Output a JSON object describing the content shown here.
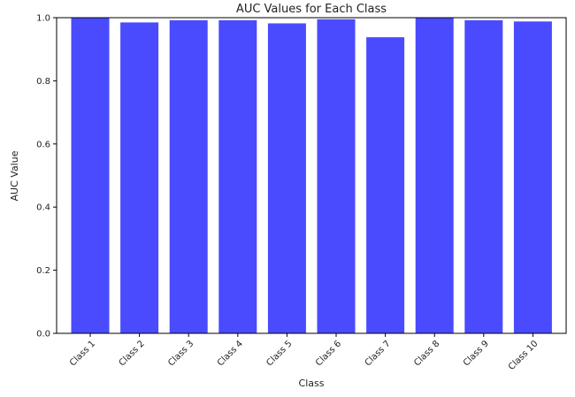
{
  "chart_data": {
    "type": "bar",
    "title": "AUC Values for Each Class",
    "xlabel": "Class",
    "ylabel": "AUC Value",
    "categories": [
      "Class 1",
      "Class 2",
      "Class 3",
      "Class 4",
      "Class 5",
      "Class 6",
      "Class 7",
      "Class 8",
      "Class 9",
      "Class 10"
    ],
    "values": [
      1.0,
      0.985,
      0.992,
      0.992,
      0.982,
      0.995,
      0.938,
      1.0,
      0.992,
      0.988
    ],
    "ylim": [
      0,
      1.0
    ],
    "yticks": [
      "0.0",
      "0.2",
      "0.4",
      "0.6",
      "0.8",
      "1.0"
    ],
    "bar_color": "#4a4aff",
    "grid": false,
    "legend": "none"
  }
}
